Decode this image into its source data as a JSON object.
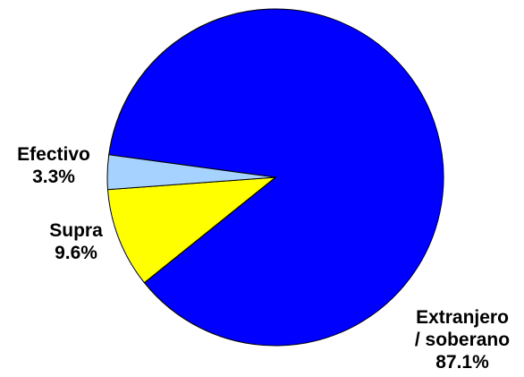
{
  "chart_data": {
    "type": "pie",
    "slices": [
      {
        "label": "Extranjero / soberano",
        "label_lines": [
          "Extranjero",
          "/ soberano"
        ],
        "value": 87.1,
        "value_text": "87.1%",
        "color": "#0000ff"
      },
      {
        "label": "Supra",
        "label_lines": [
          "Supra"
        ],
        "value": 9.6,
        "value_text": "9.6%",
        "color": "#ffff00"
      },
      {
        "label": "Efectivo",
        "label_lines": [
          "Efectivo"
        ],
        "value": 3.3,
        "value_text": "3.3%",
        "color": "#a6d2ff"
      }
    ],
    "title": "",
    "legend": "none"
  }
}
